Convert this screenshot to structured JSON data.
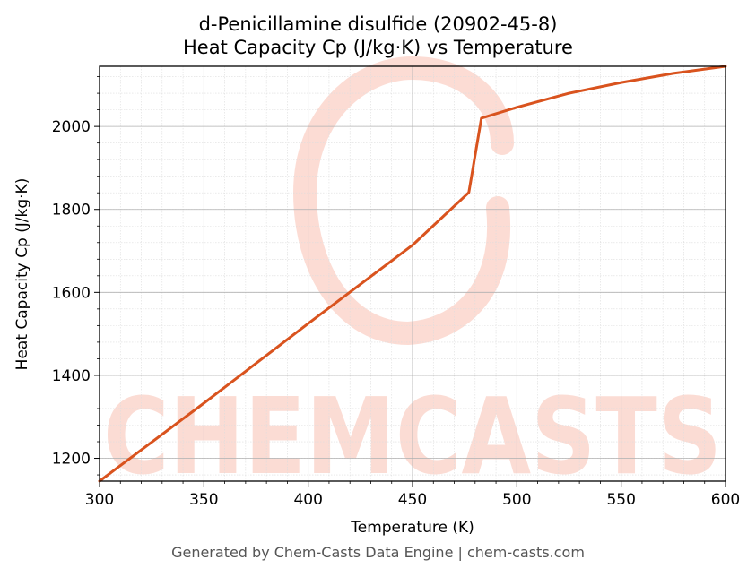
{
  "footer": "Generated by Chem-Casts Data Engine | chem-casts.com",
  "watermark": "CHEMCASTS",
  "colors": {
    "series": "#d9531e",
    "watermark": "#fbd6cd",
    "grid_major": "#b0b0b0",
    "grid_minor": "#dddddd"
  },
  "chart_data": {
    "type": "line",
    "title": "d-Penicillamine disulfide (20902-45-8)",
    "subtitle": "Heat Capacity Cp (J/kg·K) vs Temperature",
    "xlabel": "Temperature (K)",
    "ylabel": "Heat Capacity Cp (J/kg·K)",
    "xlim": [
      300,
      600
    ],
    "ylim": [
      1145,
      2145
    ],
    "xticks": [
      300,
      350,
      400,
      450,
      500,
      550,
      600
    ],
    "yticks": [
      1200,
      1400,
      1600,
      1800,
      2000
    ],
    "grid": true,
    "series": [
      {
        "values": [
          [
            300,
            1145
          ],
          [
            350,
            1333
          ],
          [
            400,
            1525
          ],
          [
            450,
            1714
          ],
          [
            477,
            1841
          ],
          [
            483,
            2020
          ],
          [
            500,
            2046
          ],
          [
            525,
            2080
          ],
          [
            550,
            2106
          ],
          [
            575,
            2128
          ],
          [
            600,
            2145
          ]
        ]
      }
    ]
  }
}
